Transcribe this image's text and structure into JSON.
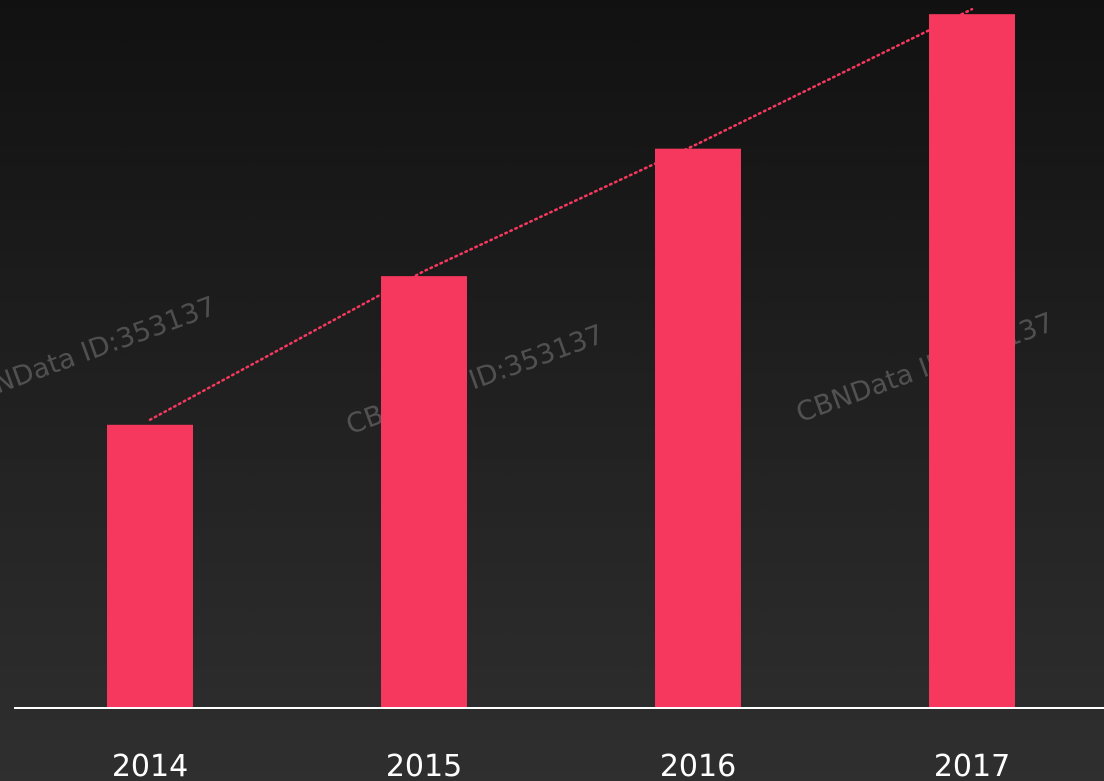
{
  "chart_data": {
    "type": "bar",
    "categories": [
      "2014",
      "2015",
      "2016",
      "2017"
    ],
    "values": [
      40,
      61,
      79,
      98
    ],
    "color": "#f7385e",
    "ylim": [
      0,
      100
    ],
    "trend_line": true,
    "watermark": "CBNData ID:353137"
  }
}
